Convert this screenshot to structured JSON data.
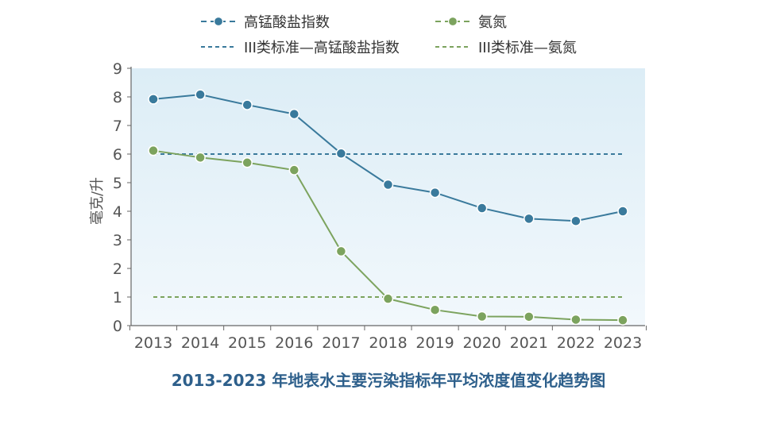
{
  "chart_data": {
    "type": "line",
    "title": "2013-2023 年地表水主要污染指标年平均浓度值变化趋势图",
    "xlabel": "",
    "ylabel": "毫克/升",
    "categories": [
      "2013",
      "2014",
      "2015",
      "2016",
      "2017",
      "2018",
      "2019",
      "2020",
      "2021",
      "2022",
      "2023"
    ],
    "ylim": [
      0,
      9
    ],
    "yticks": [
      "0",
      "1",
      "2",
      "3",
      "4",
      "5",
      "6",
      "7",
      "8",
      "9"
    ],
    "grid": false,
    "legend_position": "top",
    "series": [
      {
        "name": "高锰酸盐指数",
        "style": "line-marker",
        "color": "#3a7a9c",
        "values": [
          7.92,
          8.08,
          7.72,
          7.4,
          6.02,
          4.93,
          4.65,
          4.11,
          3.74,
          3.66,
          4.0
        ]
      },
      {
        "name": "氨氮",
        "style": "line-marker",
        "color": "#7ca35e",
        "values": [
          6.12,
          5.88,
          5.7,
          5.44,
          2.6,
          0.94,
          0.55,
          0.32,
          0.31,
          0.21,
          0.19
        ]
      },
      {
        "name": "III类标准—高锰酸盐指数",
        "style": "dashed",
        "color": "#3a7a9c",
        "values": [
          6,
          6,
          6,
          6,
          6,
          6,
          6,
          6,
          6,
          6,
          6
        ]
      },
      {
        "name": "III类标准—氨氮",
        "style": "dashed",
        "color": "#7ca35e",
        "values": [
          1,
          1,
          1,
          1,
          1,
          1,
          1,
          1,
          1,
          1,
          1
        ]
      }
    ],
    "plot_background": "#e8f3f9"
  }
}
